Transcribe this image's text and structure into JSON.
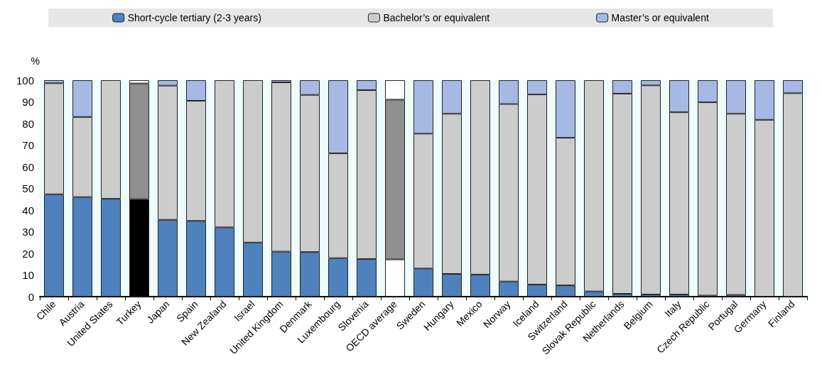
{
  "chart_data": {
    "type": "bar",
    "stacked": true,
    "ylabel": "%",
    "legend": "top",
    "grid": false,
    "ylim": [
      0,
      100
    ],
    "yticks": [
      0,
      10,
      20,
      30,
      40,
      50,
      60,
      70,
      80,
      90,
      100
    ],
    "categories": [
      "Chile",
      "Austria",
      "United States",
      "Turkey",
      "Japan",
      "Spain",
      "New Zealand",
      "Israel",
      "United Kingdom",
      "Denmark",
      "Luxembourg",
      "Slovenia",
      "OECD average",
      "Sweden",
      "Hungary",
      "Mexico",
      "Norway",
      "Iceland",
      "Switzerland",
      "Slovak Republic",
      "Netherlands",
      "Belgium",
      "Italy",
      "Czech Republic",
      "Portugal",
      "Germany",
      "Finland"
    ],
    "series": [
      {
        "name": "Short-cycle tertiary (2-3 years)",
        "color": "#4f81bd",
        "colors": [
          "#4f81bd",
          "#4f81bd",
          "#4f81bd",
          "#000000",
          "#4f81bd",
          "#4f81bd",
          "#4f81bd",
          "#4f81bd",
          "#4f81bd",
          "#4f81bd",
          "#4f81bd",
          "#4f81bd",
          "#ffffff",
          "#4f81bd",
          "#4f81bd",
          "#4f81bd",
          "#4f81bd",
          "#4f81bd",
          "#4f81bd",
          "#4f81bd",
          "#4f81bd",
          "#4f81bd",
          "#4f81bd",
          "#4f81bd",
          "#4f81bd",
          "#4f81bd",
          "#4f81bd"
        ],
        "values": [
          47.3,
          46,
          45.2,
          45,
          35.5,
          35,
          32,
          25,
          20.8,
          20.6,
          17.8,
          17.4,
          17.2,
          13,
          10.5,
          10.2,
          7,
          5.6,
          5.2,
          2.4,
          1.3,
          1,
          1,
          0.5,
          0.8,
          0,
          0
        ]
      },
      {
        "name": "Bachelor’s or equivalent",
        "color": "#cccccc",
        "colors": [
          "#cccccc",
          "#cccccc",
          "#cccccc",
          "#8f8f8f",
          "#cccccc",
          "#cccccc",
          "#cccccc",
          "#cccccc",
          "#cccccc",
          "#cccccc",
          "#cccccc",
          "#cccccc",
          "#8f8f8f",
          "#cccccc",
          "#cccccc",
          "#cccccc",
          "#cccccc",
          "#cccccc",
          "#cccccc",
          "#cccccc",
          "#cccccc",
          "#cccccc",
          "#cccccc",
          "#cccccc",
          "#cccccc",
          "#cccccc",
          "#cccccc"
        ],
        "values": [
          51.3,
          37,
          54.8,
          53.5,
          62,
          55.5,
          68,
          75,
          78.2,
          72.6,
          48.4,
          78,
          73.8,
          62.3,
          74,
          89.8,
          82,
          87.8,
          68.2,
          97.6,
          92.5,
          96.6,
          84.2,
          89.3,
          83.7,
          81.7,
          94
        ]
      },
      {
        "name": "Master’s or equivalent",
        "color": "#a6b9e4",
        "colors": [
          "#a6b9e4",
          "#a6b9e4",
          "#a6b9e4",
          "#ffffff",
          "#a6b9e4",
          "#a6b9e4",
          "#a6b9e4",
          "#a6b9e4",
          "#a6b9e4",
          "#a6b9e4",
          "#a6b9e4",
          "#a6b9e4",
          "#ffffff",
          "#a6b9e4",
          "#a6b9e4",
          "#a6b9e4",
          "#a6b9e4",
          "#a6b9e4",
          "#a6b9e4",
          "#a6b9e4",
          "#a6b9e4",
          "#a6b9e4",
          "#a6b9e4",
          "#a6b9e4",
          "#a6b9e4",
          "#a6b9e4",
          "#a6b9e4"
        ],
        "values": [
          1.4,
          17,
          0,
          1.5,
          2.5,
          9.5,
          0,
          0,
          1,
          6.8,
          33.8,
          4.6,
          9,
          24.7,
          15.5,
          0,
          11,
          6.6,
          26.6,
          0,
          6.2,
          2.4,
          14.8,
          10.2,
          15.5,
          18.3,
          6
        ]
      }
    ]
  }
}
